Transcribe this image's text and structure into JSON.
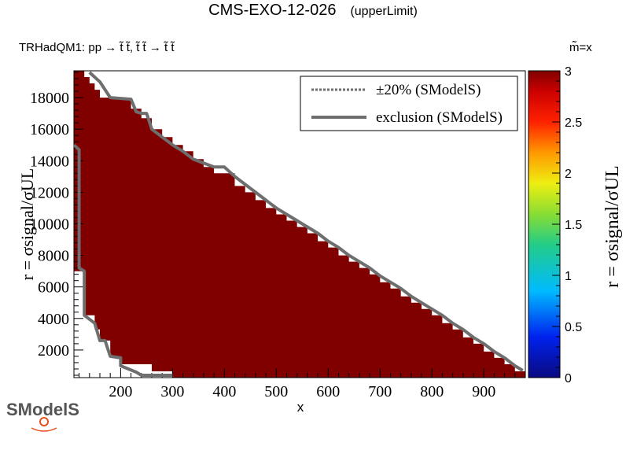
{
  "title": "CMS-EXO-12-026",
  "subtitle": "(upperLimit)",
  "process_label": "TRHadQM1: pp  → t̃ t̃, t̃ t̃ → t̃ t̃",
  "mass_label": "m̃=x",
  "logo_text": "SModelS",
  "chart_data": {
    "type": "heatmap",
    "xlabel": "x",
    "ylabel": "r = σsignal/σUL",
    "zlabel": "r = σsignal/σUL",
    "xlim": [
      110,
      980
    ],
    "ylim": [
      250,
      19700
    ],
    "zlim": [
      0,
      3
    ],
    "x_ticks": [
      200,
      300,
      400,
      500,
      600,
      700,
      800,
      900
    ],
    "y_ticks": [
      2000,
      4000,
      6000,
      8000,
      10000,
      12000,
      14000,
      16000,
      18000
    ],
    "z_ticks": [
      0,
      0.5,
      1,
      1.5,
      2,
      2.5,
      3
    ],
    "cell_value": 3,
    "cell_color": "#800000",
    "filled_region": [
      [
        110,
        19700
      ],
      [
        130,
        19700
      ],
      [
        130,
        19300
      ],
      [
        140,
        19300
      ],
      [
        140,
        18900
      ],
      [
        150,
        18900
      ],
      [
        150,
        18500
      ],
      [
        160,
        18500
      ],
      [
        160,
        18000
      ],
      [
        220,
        18000
      ],
      [
        220,
        17300
      ],
      [
        240,
        17300
      ],
      [
        240,
        16700
      ],
      [
        260,
        16700
      ],
      [
        260,
        16000
      ],
      [
        280,
        16000
      ],
      [
        280,
        15500
      ],
      [
        300,
        15500
      ],
      [
        300,
        15000
      ],
      [
        320,
        15000
      ],
      [
        320,
        14600
      ],
      [
        340,
        14600
      ],
      [
        340,
        14100
      ],
      [
        360,
        14100
      ],
      [
        360,
        13600
      ],
      [
        380,
        13600
      ],
      [
        380,
        13200
      ],
      [
        420,
        13200
      ],
      [
        420,
        12400
      ],
      [
        440,
        12400
      ],
      [
        440,
        12000
      ],
      [
        460,
        12000
      ],
      [
        460,
        11500
      ],
      [
        480,
        11500
      ],
      [
        480,
        11000
      ],
      [
        500,
        11000
      ],
      [
        500,
        10600
      ],
      [
        520,
        10600
      ],
      [
        520,
        10200
      ],
      [
        540,
        10200
      ],
      [
        540,
        9800
      ],
      [
        560,
        9800
      ],
      [
        560,
        9400
      ],
      [
        580,
        9400
      ],
      [
        580,
        8900
      ],
      [
        600,
        8900
      ],
      [
        600,
        8500
      ],
      [
        620,
        8500
      ],
      [
        620,
        8000
      ],
      [
        640,
        8000
      ],
      [
        640,
        7600
      ],
      [
        660,
        7600
      ],
      [
        660,
        7200
      ],
      [
        680,
        7200
      ],
      [
        680,
        6800
      ],
      [
        700,
        6800
      ],
      [
        700,
        6300
      ],
      [
        720,
        6300
      ],
      [
        720,
        5900
      ],
      [
        740,
        5900
      ],
      [
        740,
        5400
      ],
      [
        760,
        5400
      ],
      [
        760,
        5000
      ],
      [
        780,
        5000
      ],
      [
        780,
        4600
      ],
      [
        800,
        4600
      ],
      [
        800,
        4200
      ],
      [
        820,
        4200
      ],
      [
        820,
        3700
      ],
      [
        840,
        3700
      ],
      [
        840,
        3300
      ],
      [
        860,
        3300
      ],
      [
        860,
        2800
      ],
      [
        880,
        2800
      ],
      [
        880,
        2400
      ],
      [
        900,
        2400
      ],
      [
        900,
        1900
      ],
      [
        920,
        1900
      ],
      [
        920,
        1500
      ],
      [
        940,
        1500
      ],
      [
        940,
        1100
      ],
      [
        960,
        1100
      ],
      [
        960,
        650
      ],
      [
        980,
        650
      ],
      [
        980,
        250
      ],
      [
        300,
        250
      ],
      [
        300,
        650
      ],
      [
        260,
        650
      ],
      [
        260,
        1100
      ],
      [
        200,
        1100
      ],
      [
        200,
        1600
      ],
      [
        180,
        1600
      ],
      [
        180,
        2600
      ],
      [
        160,
        2600
      ],
      [
        160,
        3300
      ],
      [
        150,
        3300
      ],
      [
        150,
        4200
      ],
      [
        130,
        4200
      ],
      [
        130,
        7000
      ],
      [
        110,
        7000
      ]
    ],
    "series": [
      {
        "name": "exclusion (SModelS)",
        "style": "solid",
        "color": "#6e6e6e",
        "points": [
          [
            140,
            19600
          ],
          [
            160,
            19000
          ],
          [
            180,
            18000
          ],
          [
            220,
            17900
          ],
          [
            230,
            17100
          ],
          [
            240,
            17000
          ],
          [
            250,
            17000
          ],
          [
            260,
            16000
          ],
          [
            280,
            15500
          ],
          [
            300,
            15000
          ],
          [
            320,
            14600
          ],
          [
            340,
            14100
          ],
          [
            380,
            13600
          ],
          [
            400,
            13600
          ],
          [
            420,
            13000
          ],
          [
            440,
            12500
          ],
          [
            460,
            12000
          ],
          [
            480,
            11500
          ],
          [
            500,
            11000
          ],
          [
            520,
            10600
          ],
          [
            540,
            10200
          ],
          [
            560,
            9800
          ],
          [
            580,
            9400
          ],
          [
            600,
            8900
          ],
          [
            620,
            8500
          ],
          [
            640,
            8000
          ],
          [
            660,
            7600
          ],
          [
            680,
            7200
          ],
          [
            700,
            6700
          ],
          [
            720,
            6300
          ],
          [
            740,
            5900
          ],
          [
            760,
            5400
          ],
          [
            780,
            5000
          ],
          [
            800,
            4600
          ],
          [
            820,
            4200
          ],
          [
            840,
            3700
          ],
          [
            860,
            3300
          ],
          [
            880,
            2800
          ],
          [
            900,
            2400
          ],
          [
            920,
            1900
          ],
          [
            940,
            1500
          ],
          [
            960,
            1000
          ],
          [
            975,
            700
          ]
        ]
      },
      {
        "name": "exclusion (SModelS) left edge",
        "style": "solid",
        "color": "#6e6e6e",
        "points": [
          [
            110,
            15000
          ],
          [
            120,
            14700
          ],
          [
            120,
            7200
          ],
          [
            130,
            7000
          ],
          [
            130,
            4200
          ],
          [
            150,
            3700
          ],
          [
            160,
            2600
          ],
          [
            170,
            2600
          ],
          [
            180,
            1600
          ],
          [
            200,
            1500
          ],
          [
            200,
            1000
          ],
          [
            230,
            600
          ],
          [
            240,
            400
          ],
          [
            300,
            400
          ]
        ]
      }
    ],
    "legend": {
      "position": "top-right",
      "entries": [
        {
          "label": "±20% (SModelS)",
          "style": "dotted",
          "color": "#6e6e6e"
        },
        {
          "label": "exclusion (SModelS)",
          "style": "solid",
          "color": "#6e6e6e"
        }
      ]
    },
    "colorbar_stops": [
      {
        "v": 0,
        "c": "#0a0a80"
      },
      {
        "v": 0.4,
        "c": "#0022ee"
      },
      {
        "v": 0.85,
        "c": "#00bbff"
      },
      {
        "v": 1.3,
        "c": "#22cc88"
      },
      {
        "v": 1.6,
        "c": "#88dd33"
      },
      {
        "v": 1.9,
        "c": "#eeee11"
      },
      {
        "v": 2.2,
        "c": "#ff9900"
      },
      {
        "v": 2.5,
        "c": "#ff2200"
      },
      {
        "v": 2.8,
        "c": "#cc0000"
      },
      {
        "v": 3,
        "c": "#800000"
      }
    ]
  }
}
